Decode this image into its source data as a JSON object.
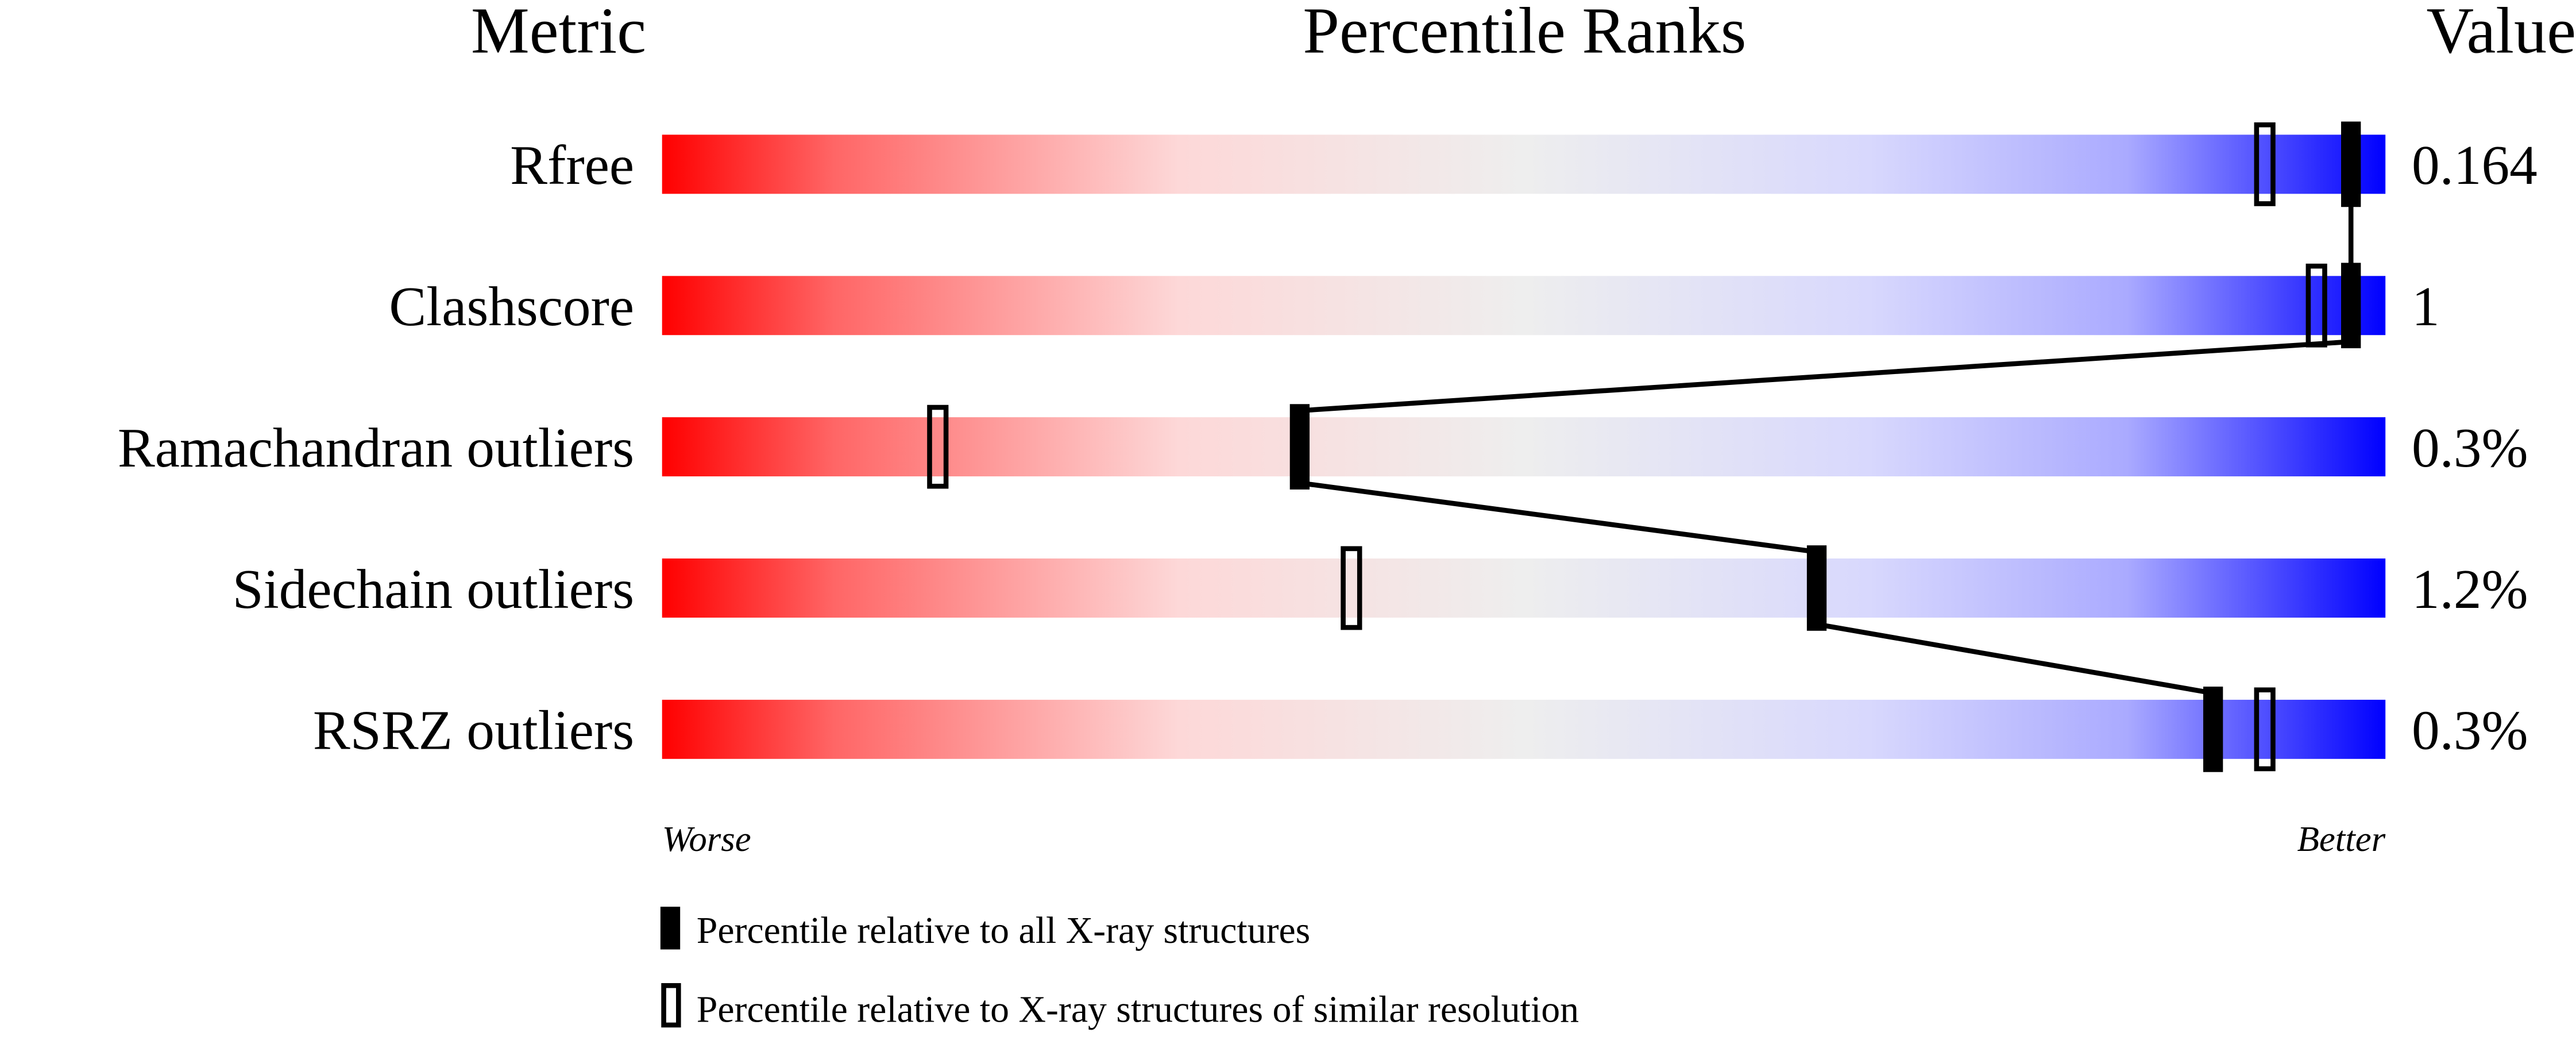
{
  "chart_data": {
    "type": "percentile-ranks",
    "headers": {
      "metric": "Metric",
      "ranks": "Percentile Ranks",
      "value": "Value"
    },
    "xlim": [
      0,
      100
    ],
    "axis_labels": {
      "left": "Worse",
      "right": "Better"
    },
    "gradient_colors": [
      "#ff0000",
      "#eeeeee",
      "#0000ff"
    ],
    "metrics": [
      {
        "name": "Rfree",
        "value": "0.164",
        "percentile_all": 98,
        "percentile_similar": 93
      },
      {
        "name": "Clashscore",
        "value": "1",
        "percentile_all": 98,
        "percentile_similar": 96
      },
      {
        "name": "Ramachandran outliers",
        "value": "0.3%",
        "percentile_all": 37,
        "percentile_similar": 16
      },
      {
        "name": "Sidechain outliers",
        "value": "1.2%",
        "percentile_all": 67,
        "percentile_similar": 40
      },
      {
        "name": "RSRZ outliers",
        "value": "0.3%",
        "percentile_all": 90,
        "percentile_similar": 93
      }
    ],
    "legend": [
      {
        "marker": "filled",
        "label": "Percentile relative to all X-ray structures"
      },
      {
        "marker": "open",
        "label": "Percentile relative to X-ray structures of similar resolution"
      }
    ]
  }
}
